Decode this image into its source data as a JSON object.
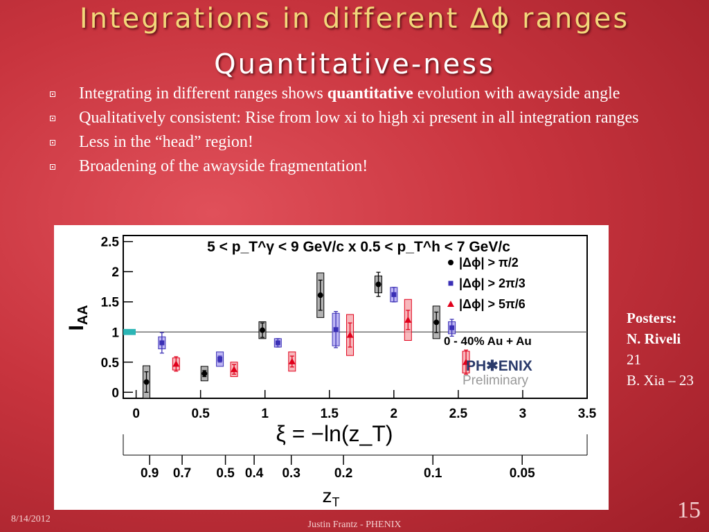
{
  "slide": {
    "title_line1": "Integrations in different ∆ϕ ranges",
    "title_line2": "Quantitative-ness",
    "bullets": [
      {
        "pre": "Integrating in different ranges shows ",
        "bold": "quantitative",
        "post": " evolution with awayside angle"
      },
      {
        "pre": "Qualitatively consistent: Rise from low xi to high xi present in all integration ranges",
        "bold": "",
        "post": ""
      },
      {
        "pre": "Less in the “head” region!",
        "bold": "",
        "post": ""
      },
      {
        "pre": "Broadening of the awayside fragmentation!",
        "bold": "",
        "post": ""
      }
    ],
    "posters_label": "Posters:",
    "poster1_name": "N. Riveli",
    "poster1_num": "21",
    "poster2": "B. Xia – 23",
    "date": "8/14/2012",
    "footer": "Justin Frantz - PHENIX",
    "page_number": "15"
  },
  "chart_data": {
    "type": "scatter",
    "title": "5 < p_T^γ < 9 GeV/c x 0.5 < p_T^h < 7 GeV/c",
    "ylabel": "I_AA",
    "xlabel": "ξ = −ln(z_T)",
    "xlabel2": "z_T",
    "xlim": [
      -0.1,
      3.5
    ],
    "ylim": [
      -0.1,
      2.6
    ],
    "xticks": [
      "0",
      "0.5",
      "1",
      "1.5",
      "2",
      "2.5",
      "3",
      "3.5"
    ],
    "yticks": [
      "0",
      "0.5",
      "1",
      "1.5",
      "2",
      "2.5"
    ],
    "zt_ticks": [
      {
        "label": "0.9",
        "xi": 0.105
      },
      {
        "label": "0.7",
        "xi": 0.357
      },
      {
        "label": "0.5",
        "xi": 0.693
      },
      {
        "label": "0.4",
        "xi": 0.916
      },
      {
        "label": "0.3",
        "xi": 1.204
      },
      {
        "label": "0.2",
        "xi": 1.609
      },
      {
        "label": "0.1",
        "xi": 2.303
      },
      {
        "label": "0.05",
        "xi": 2.996
      }
    ],
    "reference_line": 1.0,
    "annotation_centrality": "0 - 40% Au + Au",
    "logo_text": "PH✱ENIX",
    "logo_sub": "Preliminary",
    "series": [
      {
        "name": "|Δϕ| > π/2",
        "color": "#000000",
        "fill": "#9a9a9a",
        "marker": "circle",
        "points": [
          {
            "x": 0.08,
            "y": 0.17,
            "err": 0.17,
            "sys": 0.27
          },
          {
            "x": 0.53,
            "y": 0.31,
            "err": 0.05,
            "sys": 0.12
          },
          {
            "x": 0.98,
            "y": 1.03,
            "err": 0.12,
            "sys": 0.14
          },
          {
            "x": 1.43,
            "y": 1.61,
            "err": 0.25,
            "sys": 0.37
          },
          {
            "x": 1.88,
            "y": 1.79,
            "err": 0.2,
            "sys": 0.14
          },
          {
            "x": 2.33,
            "y": 1.16,
            "err": 0.17,
            "sys": 0.27
          }
        ]
      },
      {
        "name": "|Δϕ| > 2π/3",
        "color": "#3a2fb5",
        "fill": "#a89df0",
        "marker": "square",
        "points": [
          {
            "x": 0.2,
            "y": 0.82,
            "err": 0.17,
            "sys": 0.1
          },
          {
            "x": 0.65,
            "y": 0.55,
            "err": 0.05,
            "sys": 0.12
          },
          {
            "x": 1.1,
            "y": 0.82,
            "err": 0.07,
            "sys": 0.07
          },
          {
            "x": 1.55,
            "y": 1.04,
            "err": 0.3,
            "sys": 0.27
          },
          {
            "x": 2.0,
            "y": 1.62,
            "err": 0.12,
            "sys": 0.12
          },
          {
            "x": 2.45,
            "y": 1.07,
            "err": 0.14,
            "sys": 0.1
          }
        ]
      },
      {
        "name": "|Δϕ| > 5π/6",
        "color": "#e0001b",
        "fill": "#f4a0a6",
        "marker": "triangle",
        "points": [
          {
            "x": 0.31,
            "y": 0.47,
            "err": 0.12,
            "sys": 0.1
          },
          {
            "x": 0.76,
            "y": 0.38,
            "err": 0.08,
            "sys": 0.12
          },
          {
            "x": 1.21,
            "y": 0.51,
            "err": 0.09,
            "sys": 0.16
          },
          {
            "x": 1.66,
            "y": 0.95,
            "err": 0.2,
            "sys": 0.34
          },
          {
            "x": 2.11,
            "y": 1.2,
            "err": 0.16,
            "sys": 0.34
          },
          {
            "x": 2.56,
            "y": 0.5,
            "err": 0.2,
            "sys": 0.18
          }
        ]
      }
    ],
    "norm_uncertainty_box": {
      "y": 1.0,
      "half": 0.05,
      "color": "#2bb5b5"
    }
  }
}
